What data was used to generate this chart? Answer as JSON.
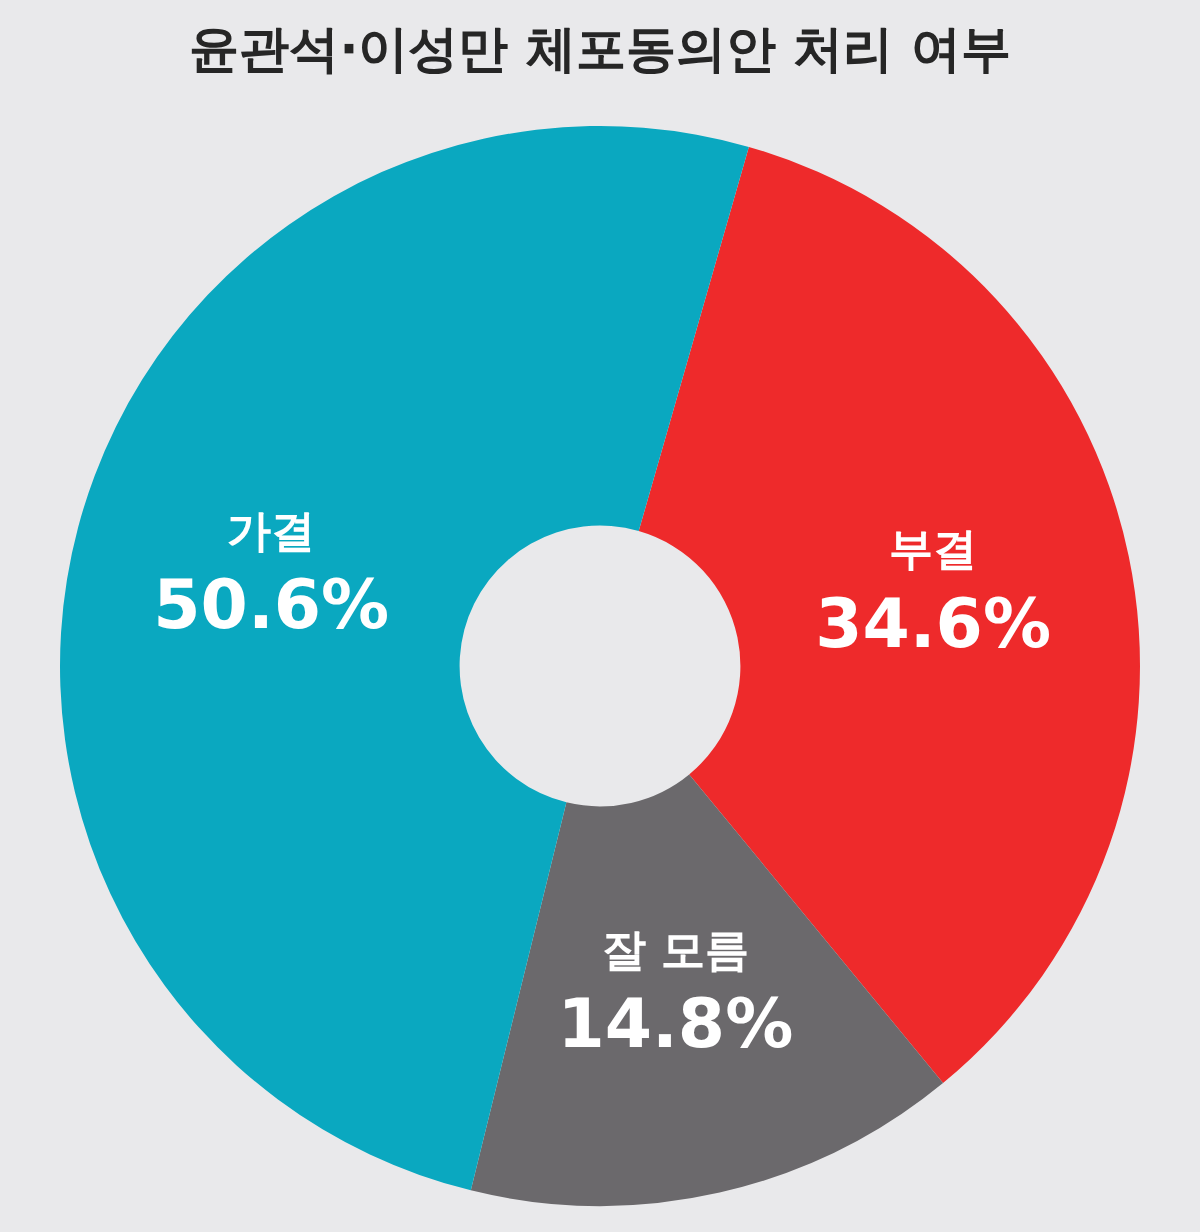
{
  "chart_data": {
    "type": "donut",
    "title": "윤관석·이성만 체포동의안 처리 여부",
    "categories": [
      "부결",
      "잘 모름",
      "가결"
    ],
    "values": [
      34.6,
      14.8,
      50.6
    ],
    "colors": [
      "#ee2a2b",
      "#6b696c",
      "#0aa8c0"
    ],
    "value_labels": [
      "34.6%",
      "14.8%",
      "50.6%"
    ],
    "legend": false
  }
}
